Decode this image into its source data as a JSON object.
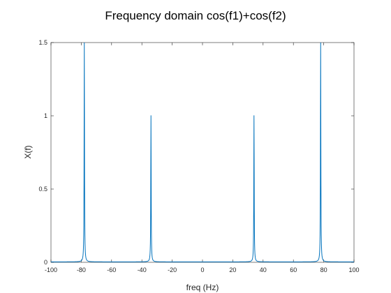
{
  "chart_data": {
    "type": "line",
    "title": "Frequency domain cos(f1)+cos(f2)",
    "xlabel": "freq (Hz)",
    "ylabel": "X(f)",
    "xlim": [
      -100,
      100
    ],
    "ylim": [
      0,
      1.5
    ],
    "xticks": [
      -100,
      -80,
      -60,
      -40,
      -20,
      0,
      20,
      40,
      60,
      80,
      100
    ],
    "xtick_labels": [
      "-100",
      "-80",
      "-60",
      "-40",
      "-20",
      "0",
      "20",
      "40",
      "60",
      "80",
      "100"
    ],
    "yticks": [
      0,
      0.5,
      1,
      1.5
    ],
    "ytick_labels": [
      "0",
      "0.5",
      "1",
      "1.5"
    ],
    "grid": false,
    "series": [
      {
        "color": "#0072BD",
        "peaks": [
          {
            "x": -78,
            "y": 1.5
          },
          {
            "x": -34,
            "y": 1.0
          },
          {
            "x": 34,
            "y": 1.0
          },
          {
            "x": 78,
            "y": 1.5
          }
        ],
        "baseline": 0.003
      }
    ]
  }
}
